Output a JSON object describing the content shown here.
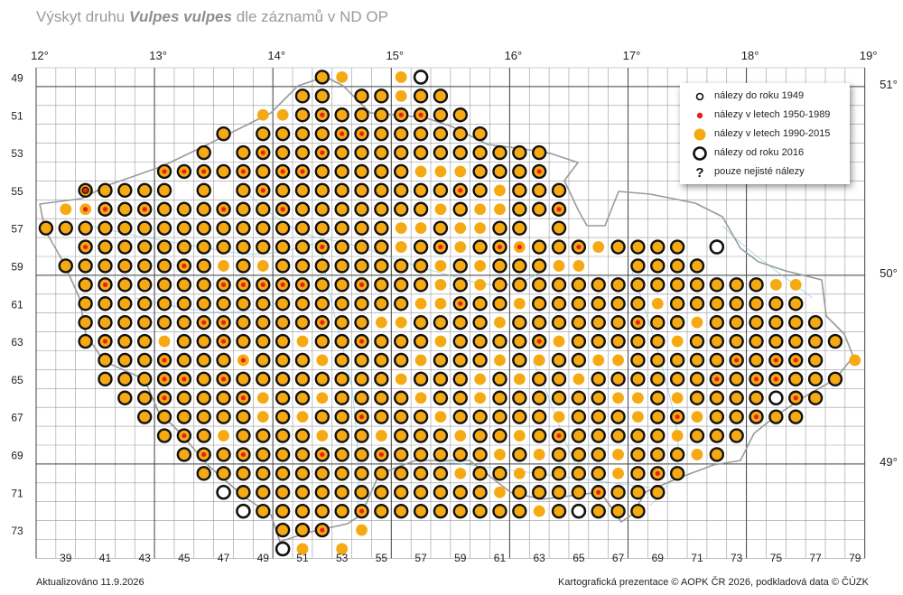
{
  "title": {
    "prefix": "Výskyt druhu ",
    "species": "Vulpes vulpes",
    "suffix": " dle záznamů v ND OP"
  },
  "footer": {
    "updated": "Aktualizováno 11.9.2026",
    "credits": "Kartografická prezentace © AOPK ČR 2026, podkladová data © ČÚZK"
  },
  "legend": [
    {
      "symbol": "small-ring",
      "label": "nálezy do roku 1949"
    },
    {
      "symbol": "red-dot",
      "label": "nálezy v letech 1950-1989"
    },
    {
      "symbol": "orange-dot",
      "label": "nálezy v letech 1990-2015"
    },
    {
      "symbol": "black-ring",
      "label": "nálezy od roku 2016"
    },
    {
      "symbol": "question-mark",
      "label": "pouze nejisté nálezy"
    }
  ],
  "axes": {
    "top_labels": [
      "12°",
      "13°",
      "14°",
      "15°",
      "16°",
      "17°",
      "18°",
      "19°"
    ],
    "right_labels": [
      "51°",
      "50°",
      "49°"
    ],
    "left_labels": [
      "49",
      "51",
      "53",
      "55",
      "57",
      "59",
      "61",
      "63",
      "65",
      "67",
      "69",
      "71",
      "73"
    ],
    "bottom_labels": [
      "39",
      "41",
      "43",
      "45",
      "47",
      "49",
      "51",
      "53",
      "55",
      "57",
      "59",
      "61",
      "63",
      "65",
      "67",
      "69",
      "71",
      "73",
      "75",
      "77",
      "79"
    ]
  },
  "colors": {
    "orange": "#f5a912",
    "red": "#e8201a",
    "ring": "#111111",
    "grid": "#9a9a9a",
    "degree_line": "#444444",
    "river": "#7ec8d8",
    "border": "#999999"
  },
  "grid_range": {
    "col_first": 38,
    "col_last": 79,
    "row_first": 49,
    "row_last": 74
  },
  "row_extents": [
    [
      "49",
      52,
      57
    ],
    [
      "50",
      51,
      58
    ],
    [
      "51",
      49,
      59
    ],
    [
      "52",
      47,
      60
    ],
    [
      "53",
      46,
      63
    ],
    [
      "54",
      44,
      64
    ],
    [
      "55",
      40,
      64
    ],
    [
      "56",
      38,
      64
    ],
    [
      "57",
      38,
      64
    ],
    [
      "58",
      39,
      73
    ],
    [
      "59",
      39,
      73
    ],
    [
      "60",
      40,
      77
    ],
    [
      "61",
      40,
      77
    ],
    [
      "62",
      40,
      77
    ],
    [
      "63",
      40,
      78
    ],
    [
      "64",
      41,
      79
    ],
    [
      "65",
      41,
      78
    ],
    [
      "66",
      42,
      77
    ],
    [
      "67",
      43,
      76
    ],
    [
      "68",
      44,
      74
    ],
    [
      "69",
      45,
      73
    ],
    [
      "70",
      46,
      72
    ],
    [
      "71",
      47,
      70
    ],
    [
      "72",
      48,
      68
    ],
    [
      "73",
      50,
      54
    ],
    [
      "74",
      50,
      53
    ]
  ],
  "symbol_rules": {
    "orange_only": [
      [
        49,
        53
      ],
      [
        49,
        56
      ],
      [
        50,
        56
      ],
      [
        51,
        49
      ],
      [
        51,
        50
      ],
      [
        54,
        57
      ],
      [
        54,
        58
      ],
      [
        54,
        59
      ],
      [
        55,
        61
      ],
      [
        56,
        58
      ],
      [
        56,
        60
      ],
      [
        56,
        61
      ],
      [
        57,
        56
      ],
      [
        57,
        57
      ],
      [
        57,
        59
      ],
      [
        57,
        60
      ],
      [
        58,
        56
      ],
      [
        58,
        59
      ],
      [
        58,
        62
      ],
      [
        59,
        47
      ],
      [
        59,
        49
      ],
      [
        59,
        58
      ],
      [
        59,
        60
      ],
      [
        59,
        64
      ],
      [
        59,
        65
      ],
      [
        60,
        58
      ],
      [
        60,
        60
      ],
      [
        61,
        57
      ],
      [
        61,
        58
      ],
      [
        61,
        62
      ],
      [
        62,
        55
      ],
      [
        62,
        56
      ],
      [
        62,
        61
      ],
      [
        63,
        44
      ],
      [
        63,
        51
      ],
      [
        63,
        58
      ],
      [
        63,
        64
      ],
      [
        63,
        70
      ],
      [
        64,
        48
      ],
      [
        64,
        52
      ],
      [
        64,
        57
      ],
      [
        64,
        61
      ],
      [
        64,
        63
      ],
      [
        64,
        66
      ],
      [
        64,
        67
      ],
      [
        65,
        56
      ],
      [
        65,
        60
      ],
      [
        65,
        62
      ],
      [
        65,
        65
      ],
      [
        66,
        49
      ],
      [
        66,
        52
      ],
      [
        66,
        57
      ],
      [
        66,
        60
      ],
      [
        66,
        67
      ],
      [
        66,
        68
      ],
      [
        66,
        70
      ],
      [
        67,
        49
      ],
      [
        67,
        51
      ],
      [
        67,
        58
      ],
      [
        67,
        64
      ],
      [
        67,
        68
      ],
      [
        67,
        71
      ],
      [
        68,
        47
      ],
      [
        68,
        52
      ],
      [
        68,
        55
      ],
      [
        68,
        59
      ],
      [
        68,
        62
      ],
      [
        68,
        70
      ],
      [
        69,
        44
      ],
      [
        69,
        61
      ],
      [
        69,
        63
      ],
      [
        69,
        67
      ],
      [
        69,
        71
      ],
      [
        70,
        59
      ],
      [
        70,
        62
      ],
      [
        70,
        67
      ],
      [
        71,
        61
      ],
      [
        71,
        72
      ],
      [
        72,
        63
      ],
      [
        72,
        65
      ],
      [
        73,
        54
      ],
      [
        74,
        51
      ],
      [
        74,
        53
      ],
      [
        56,
        39
      ],
      [
        56,
        40
      ],
      [
        55,
        68
      ],
      [
        56,
        67
      ],
      [
        58,
        66
      ],
      [
        59,
        74
      ],
      [
        60,
        75
      ],
      [
        60,
        76
      ],
      [
        64,
        79
      ],
      [
        62,
        71
      ],
      [
        61,
        69
      ]
    ],
    "red_center": [
      [
        51,
        52
      ],
      [
        51,
        56
      ],
      [
        51,
        57
      ],
      [
        52,
        53
      ],
      [
        52,
        54
      ],
      [
        53,
        49
      ],
      [
        53,
        52
      ],
      [
        54,
        44
      ],
      [
        54,
        45
      ],
      [
        54,
        46
      ],
      [
        54,
        48
      ],
      [
        54,
        50
      ],
      [
        54,
        51
      ],
      [
        54,
        63
      ],
      [
        55,
        40
      ],
      [
        55,
        49
      ],
      [
        55,
        59
      ],
      [
        56,
        40
      ],
      [
        56,
        41
      ],
      [
        56,
        43
      ],
      [
        56,
        47
      ],
      [
        56,
        50
      ],
      [
        56,
        64
      ],
      [
        58,
        40
      ],
      [
        58,
        52
      ],
      [
        58,
        58
      ],
      [
        58,
        61
      ],
      [
        58,
        62
      ],
      [
        58,
        65
      ],
      [
        59,
        45
      ],
      [
        60,
        41
      ],
      [
        60,
        47
      ],
      [
        60,
        48
      ],
      [
        60,
        49
      ],
      [
        60,
        50
      ],
      [
        60,
        51
      ],
      [
        60,
        54
      ],
      [
        61,
        59
      ],
      [
        62,
        39
      ],
      [
        62,
        46
      ],
      [
        62,
        47
      ],
      [
        62,
        52
      ],
      [
        62,
        68
      ],
      [
        63,
        41
      ],
      [
        63,
        47
      ],
      [
        63,
        54
      ],
      [
        63,
        63
      ],
      [
        64,
        44
      ],
      [
        64,
        48
      ],
      [
        64,
        73
      ],
      [
        64,
        75
      ],
      [
        64,
        76
      ],
      [
        65,
        44
      ],
      [
        65,
        45
      ],
      [
        65,
        47
      ],
      [
        65,
        72
      ],
      [
        65,
        74
      ],
      [
        65,
        75
      ],
      [
        66,
        41
      ],
      [
        66,
        44
      ],
      [
        66,
        48
      ],
      [
        66,
        76
      ],
      [
        67,
        70
      ],
      [
        67,
        74
      ],
      [
        67,
        54
      ],
      [
        68,
        43
      ],
      [
        68,
        45
      ],
      [
        68,
        64
      ],
      [
        69,
        46
      ],
      [
        69,
        48
      ],
      [
        69,
        52
      ],
      [
        69,
        55
      ],
      [
        70,
        69
      ],
      [
        71,
        66
      ],
      [
        72,
        54
      ],
      [
        73,
        52
      ]
    ],
    "small_ring": [
      [
        55,
        40
      ],
      [
        68,
        43
      ]
    ],
    "empty_ring": [
      [
        49,
        57
      ],
      [
        58,
        72
      ],
      [
        60,
        39
      ],
      [
        61,
        39
      ],
      [
        66,
        75
      ],
      [
        71,
        47
      ],
      [
        72,
        48
      ],
      [
        72,
        65
      ],
      [
        74,
        50
      ]
    ],
    "absent": [
      [
        49,
        54
      ],
      [
        49,
        55
      ],
      [
        50,
        53
      ],
      [
        52,
        48
      ],
      [
        53,
        47
      ],
      [
        54,
        64
      ],
      [
        55,
        45
      ],
      [
        55,
        47
      ],
      [
        56,
        38
      ],
      [
        57,
        63
      ],
      [
        58,
        39
      ],
      [
        58,
        71
      ],
      [
        58,
        73
      ],
      [
        59,
        66
      ],
      [
        59,
        67
      ],
      [
        59,
        72
      ],
      [
        59,
        73
      ],
      [
        60,
        77
      ],
      [
        61,
        77
      ],
      [
        64,
        78
      ],
      [
        65,
        79
      ],
      [
        66,
        78
      ],
      [
        67,
        77
      ],
      [
        68,
        74
      ],
      [
        68,
        75
      ],
      [
        69,
        73
      ],
      [
        70,
        72
      ],
      [
        70,
        71
      ],
      [
        71,
        70
      ],
      [
        72,
        69
      ],
      [
        72,
        70
      ],
      [
        73,
        53
      ],
      [
        74,
        52
      ]
    ]
  }
}
